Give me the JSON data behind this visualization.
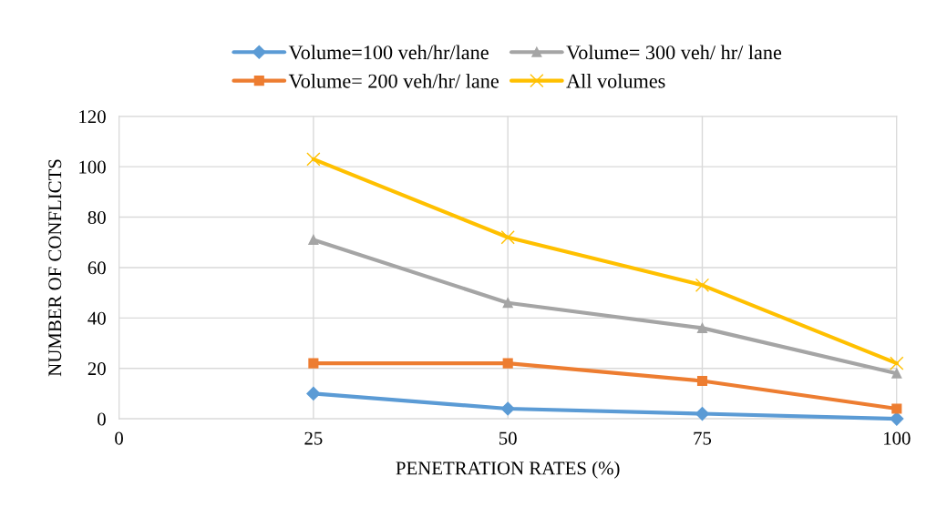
{
  "chart_data": {
    "type": "line",
    "xlabel": "PENETRATION RATES (%)",
    "ylabel": "NUMBER OF CONFLICTS",
    "x": [
      25,
      50,
      75,
      100
    ],
    "series": [
      {
        "name": "Volume=100 veh/hr/lane",
        "color": "#5b9bd5",
        "marker": "diamond",
        "values": [
          10,
          4,
          2,
          0
        ]
      },
      {
        "name": "Volume= 200 veh/hr/ lane",
        "color": "#ed7d31",
        "marker": "square",
        "values": [
          22,
          22,
          15,
          4
        ]
      },
      {
        "name": "Volume= 300 veh/ hr/ lane",
        "color": "#a5a5a5",
        "marker": "triangle",
        "values": [
          71,
          46,
          36,
          18
        ]
      },
      {
        "name": "All volumes",
        "color": "#ffc000",
        "marker": "cross",
        "values": [
          103,
          72,
          53,
          22
        ]
      }
    ],
    "xlim": [
      0,
      100
    ],
    "xticks": [
      0,
      25,
      50,
      75,
      100
    ],
    "ylim": [
      0,
      120
    ],
    "yticks": [
      0,
      20,
      40,
      60,
      80,
      100,
      120
    ],
    "grid": true,
    "legend": "top",
    "line_style": "solid"
  }
}
